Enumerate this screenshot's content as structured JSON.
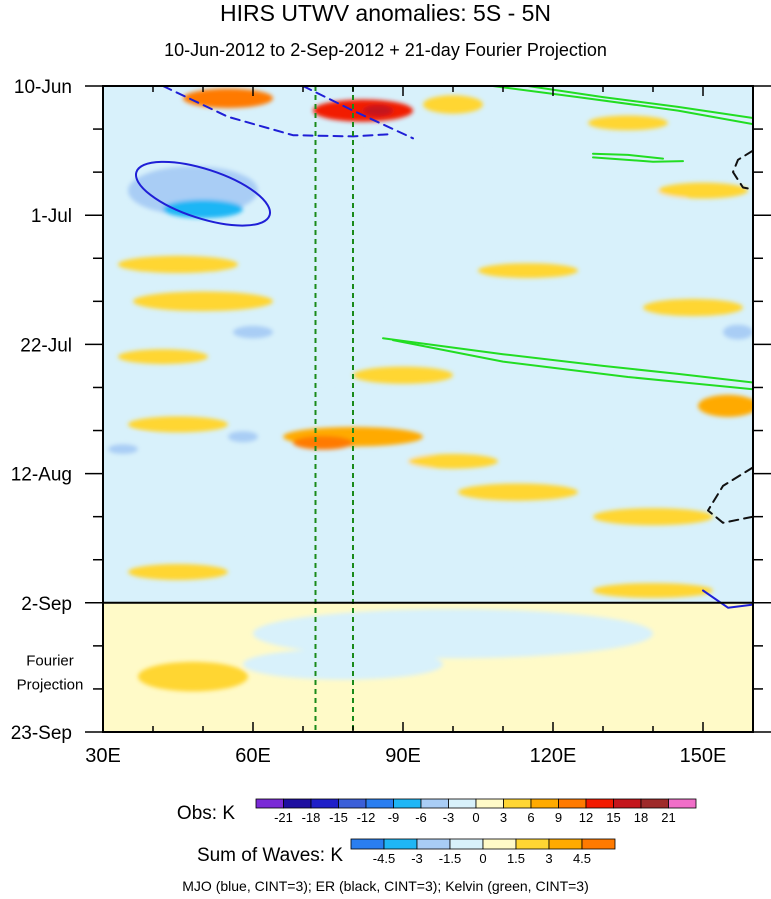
{
  "chart_data": {
    "type": "heatmap",
    "title": "HIRS UTWV anomalies: 5S - 5N",
    "subtitle": "10-Jun-2012 to 2-Sep-2012 + 21-day Fourier Projection",
    "x_axis": {
      "label": "",
      "range": [
        30,
        160
      ],
      "ticks": [
        {
          "value": 30,
          "label": "30E"
        },
        {
          "value": 60,
          "label": "60E"
        },
        {
          "value": 90,
          "label": "90E"
        },
        {
          "value": 120,
          "label": "120E"
        },
        {
          "value": 150,
          "label": "150E"
        }
      ],
      "minor_tick_step": 10
    },
    "y_axis": {
      "label": "",
      "range_days": [
        0,
        105
      ],
      "direction": "time increases downward",
      "ticks": [
        {
          "day": 0,
          "label": "10-Jun"
        },
        {
          "day": 21,
          "label": "1-Jul"
        },
        {
          "day": 42,
          "label": "22-Jul"
        },
        {
          "day": 63,
          "label": "12-Aug"
        },
        {
          "day": 84,
          "label": "2-Sep"
        },
        {
          "day": 105,
          "label": "23-Sep"
        }
      ],
      "minor_tick_step_days": 7
    },
    "forecast_start_day": 84,
    "forecast_label_lines": [
      "Fourier",
      "Projection"
    ],
    "reference_longitudes": [
      72.5,
      80
    ],
    "obs_legend": {
      "label": "Obs: K",
      "levels": [
        "-21",
        "-18",
        "-15",
        "-12",
        "-9",
        "-6",
        "-3",
        "0",
        "3",
        "6",
        "9",
        "12",
        "15",
        "18",
        "21"
      ],
      "colors": [
        "#7a2ad6",
        "#1e0fa0",
        "#1f1fc8",
        "#3b5fd8",
        "#2a7ef0",
        "#1fb6f5",
        "#a9cdf5",
        "#d8f1fb",
        "#fffac8",
        "#ffd633",
        "#ffaa00",
        "#ff7a00",
        "#f21a00",
        "#c4161c",
        "#9e2a2a",
        "#f06ec8"
      ]
    },
    "waves_legend": {
      "label": "Sum of Waves: K",
      "levels": [
        "-4.5",
        "-3",
        "-1.5",
        "0",
        "1.5",
        "3",
        "4.5"
      ],
      "colors": [
        "#2a7ef0",
        "#1fb6f5",
        "#a9cdf5",
        "#d8f1fb",
        "#fffac8",
        "#ffd633",
        "#ffaa00",
        "#ff7a00"
      ]
    },
    "anomaly_patches": [
      {
        "lon": 55,
        "day": 2,
        "rx": 9,
        "ry": 1.6,
        "value": 9
      },
      {
        "lon": 82,
        "day": 4,
        "rx": 10,
        "ry": 1.8,
        "value": 12
      },
      {
        "lon": 85,
        "day": 4,
        "rx": 3,
        "ry": 0.9,
        "value": 15
      },
      {
        "lon": 100,
        "day": 3,
        "rx": 6,
        "ry": 1.5,
        "value": 3
      },
      {
        "lon": 135,
        "day": 6,
        "rx": 8,
        "ry": 1.2,
        "value": 3
      },
      {
        "lon": 95,
        "day": 10,
        "rx": 12,
        "ry": 1.3,
        "value": -3
      },
      {
        "lon": 45,
        "day": 14,
        "rx": 14,
        "ry": 2.2,
        "value": -3
      },
      {
        "lon": 48,
        "day": 17,
        "rx": 13,
        "ry": 4,
        "value": -6
      },
      {
        "lon": 50,
        "day": 20,
        "rx": 8,
        "ry": 1.5,
        "value": -9
      },
      {
        "lon": 100,
        "day": 19,
        "rx": 10,
        "ry": 1.2,
        "value": -3
      },
      {
        "lon": 135,
        "day": 18,
        "rx": 12,
        "ry": 1.5,
        "value": -3
      },
      {
        "lon": 150,
        "day": 17,
        "rx": 9,
        "ry": 1.3,
        "value": 3
      },
      {
        "lon": 75,
        "day": 25,
        "rx": 12,
        "ry": 1.6,
        "value": -3
      },
      {
        "lon": 45,
        "day": 29,
        "rx": 12,
        "ry": 1.4,
        "value": 3
      },
      {
        "lon": 115,
        "day": 30,
        "rx": 10,
        "ry": 1.2,
        "value": 3
      },
      {
        "lon": 50,
        "day": 35,
        "rx": 14,
        "ry": 1.6,
        "value": 3
      },
      {
        "lon": 95,
        "day": 36,
        "rx": 8,
        "ry": 1.2,
        "value": -3
      },
      {
        "lon": 148,
        "day": 36,
        "rx": 10,
        "ry": 1.4,
        "value": 3
      },
      {
        "lon": 60,
        "day": 40,
        "rx": 4,
        "ry": 1,
        "value": -6
      },
      {
        "lon": 125,
        "day": 40,
        "rx": 6,
        "ry": 1,
        "value": -3
      },
      {
        "lon": 157,
        "day": 40,
        "rx": 3,
        "ry": 1.2,
        "value": -6
      },
      {
        "lon": 42,
        "day": 44,
        "rx": 9,
        "ry": 1.2,
        "value": 3
      },
      {
        "lon": 90,
        "day": 47,
        "rx": 10,
        "ry": 1.4,
        "value": 3
      },
      {
        "lon": 75,
        "day": 51,
        "rx": 10,
        "ry": 1.2,
        "value": -3
      },
      {
        "lon": 155,
        "day": 52,
        "rx": 6,
        "ry": 1.8,
        "value": 6
      },
      {
        "lon": 45,
        "day": 55,
        "rx": 10,
        "ry": 1.3,
        "value": 3
      },
      {
        "lon": 35,
        "day": 58,
        "rx": 6,
        "ry": 1.3,
        "value": -3
      },
      {
        "lon": 34,
        "day": 59,
        "rx": 3,
        "ry": 0.8,
        "value": -6
      },
      {
        "lon": 58,
        "day": 57,
        "rx": 3,
        "ry": 0.9,
        "value": -6
      },
      {
        "lon": 80,
        "day": 57,
        "rx": 14,
        "ry": 1.6,
        "value": 6
      },
      {
        "lon": 74,
        "day": 58,
        "rx": 6,
        "ry": 1.1,
        "value": 9
      },
      {
        "lon": 93,
        "day": 61,
        "rx": 10,
        "ry": 1.2,
        "value": -3
      },
      {
        "lon": 100,
        "day": 61,
        "rx": 9,
        "ry": 1.2,
        "value": 3
      },
      {
        "lon": 145,
        "day": 59,
        "rx": 12,
        "ry": 1.6,
        "value": -3
      },
      {
        "lon": 50,
        "day": 65,
        "rx": 14,
        "ry": 2,
        "value": -3
      },
      {
        "lon": 113,
        "day": 66,
        "rx": 12,
        "ry": 1.4,
        "value": 3
      },
      {
        "lon": 90,
        "day": 69,
        "rx": 10,
        "ry": 1.2,
        "value": -3
      },
      {
        "lon": 140,
        "day": 70,
        "rx": 12,
        "ry": 1.4,
        "value": 3
      },
      {
        "lon": 60,
        "day": 74,
        "rx": 12,
        "ry": 1.4,
        "value": -3
      },
      {
        "lon": 110,
        "day": 76,
        "rx": 12,
        "ry": 1.4,
        "value": -3
      },
      {
        "lon": 45,
        "day": 79,
        "rx": 10,
        "ry": 1.3,
        "value": 3
      },
      {
        "lon": 140,
        "day": 82,
        "rx": 12,
        "ry": 1.2,
        "value": 3
      },
      {
        "lon": 100,
        "day": 89,
        "rx": 40,
        "ry": 4,
        "value": -1.5
      },
      {
        "lon": 78,
        "day": 94,
        "rx": 20,
        "ry": 2.5,
        "value": -1.5
      },
      {
        "lon": 48,
        "day": 96,
        "rx": 11,
        "ry": 2.4,
        "value": 3
      }
    ],
    "wave_contours": {
      "mjo": [
        {
          "lon": 50,
          "day": 17.5,
          "rx": 14,
          "ry": 4,
          "rotate": 18,
          "dash": false
        },
        {
          "path": [
            [
              42,
              0
            ],
            [
              55,
              5
            ],
            [
              68,
              8
            ],
            [
              80,
              8.2
            ],
            [
              88,
              7.8
            ]
          ],
          "dash": true
        },
        {
          "path": [
            [
              70,
              0
            ],
            [
              80,
              4
            ],
            [
              92,
              8.5
            ]
          ],
          "dash": true
        },
        {
          "path": [
            [
              150,
              82
            ],
            [
              155,
              84.8
            ],
            [
              160,
              84.3
            ]
          ],
          "dash": false
        }
      ],
      "er": [
        {
          "path": [
            [
              160,
              10.5
            ],
            [
              157,
              12
            ],
            [
              156,
              14
            ],
            [
              158,
              16.5
            ],
            [
              160,
              16.8
            ]
          ],
          "dash": true
        },
        {
          "path": [
            [
              160,
              62
            ],
            [
              154,
              65
            ],
            [
              151,
              69
            ],
            [
              154,
              71
            ],
            [
              160,
              70
            ]
          ],
          "dash": true
        }
      ],
      "kelvin": [
        {
          "path": [
            [
              115,
              0
            ],
            [
              130,
              1.8
            ],
            [
              145,
              3.4
            ],
            [
              160,
              5.2
            ]
          ]
        },
        {
          "path": [
            [
              108,
              0
            ],
            [
              125,
              1.8
            ],
            [
              145,
              4
            ],
            [
              160,
              6.2
            ]
          ]
        },
        {
          "path": [
            [
              128,
              11
            ],
            [
              135,
              11.2
            ],
            [
              142,
              11.8
            ]
          ]
        },
        {
          "path": [
            [
              128,
              11.6
            ],
            [
              140,
              12.3
            ],
            [
              146,
              12.2
            ]
          ]
        },
        {
          "path": [
            [
              86,
              41
            ],
            [
              110,
              43.6
            ],
            [
              130,
              45.5
            ],
            [
              145,
              46.8
            ],
            [
              160,
              48.2
            ]
          ]
        },
        {
          "path": [
            [
              88,
              41.3
            ],
            [
              110,
              44.8
            ],
            [
              135,
              47.3
            ],
            [
              160,
              49.3
            ]
          ]
        }
      ]
    },
    "footer": "MJO (blue, CINT=3); ER (black, CINT=3); Kelvin (green, CINT=3)"
  }
}
